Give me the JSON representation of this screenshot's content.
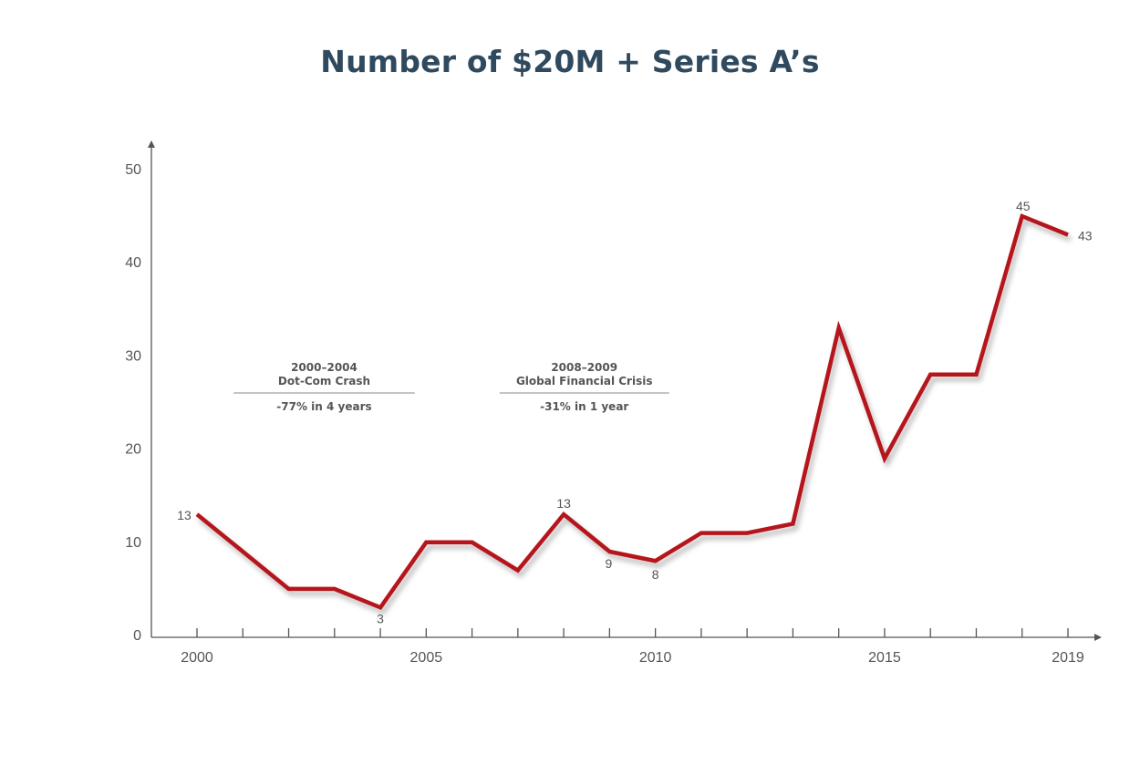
{
  "chart_data": {
    "type": "line",
    "title": "Number of $20M + Series A’s",
    "xlabel": "",
    "ylabel": "",
    "x": [
      2000,
      2001,
      2002,
      2003,
      2004,
      2005,
      2006,
      2007,
      2008,
      2009,
      2010,
      2011,
      2012,
      2013,
      2014,
      2015,
      2016,
      2017,
      2018,
      2019
    ],
    "series": [
      {
        "name": "",
        "values": [
          13,
          9,
          5,
          5,
          3,
          10,
          10,
          7,
          13,
          9,
          8,
          11,
          11,
          12,
          33,
          19,
          28,
          28,
          45,
          43
        ]
      }
    ],
    "xlim": [
      2000,
      2019
    ],
    "ylim": [
      0,
      50
    ],
    "x_tick_labels": [
      "2000",
      "2005",
      "2010",
      "2015",
      "2019"
    ],
    "y_tick_labels": [
      "0",
      "10",
      "20",
      "30",
      "40",
      "50"
    ],
    "grid": false,
    "line_color": "#b5121b",
    "data_labels": [
      {
        "x": 2000,
        "y": 13,
        "text": "13"
      },
      {
        "x": 2004,
        "y": 3,
        "text": "3"
      },
      {
        "x": 2008,
        "y": 13,
        "text": "13"
      },
      {
        "x": 2009,
        "y": 9,
        "text": "9"
      },
      {
        "x": 2010,
        "y": 8,
        "text": "8"
      },
      {
        "x": 2018,
        "y": 45,
        "text": "45"
      },
      {
        "x": 2019,
        "y": 43,
        "text": "43"
      }
    ],
    "annotations": [
      {
        "years": "2000–2004",
        "label": "Dot-Com Crash",
        "change": "-77% in 4 years",
        "x_start": 2000.8,
        "x_end": 2004.75
      },
      {
        "years": "2008–2009",
        "label": "Global Financial Crisis",
        "change": "-31% in 1 year",
        "x_start": 2006.6,
        "x_end": 2010.3
      }
    ]
  },
  "colors": {
    "title": "#2f4a5e",
    "axis": "#555555",
    "text": "#555555",
    "line": "#b5121b"
  }
}
